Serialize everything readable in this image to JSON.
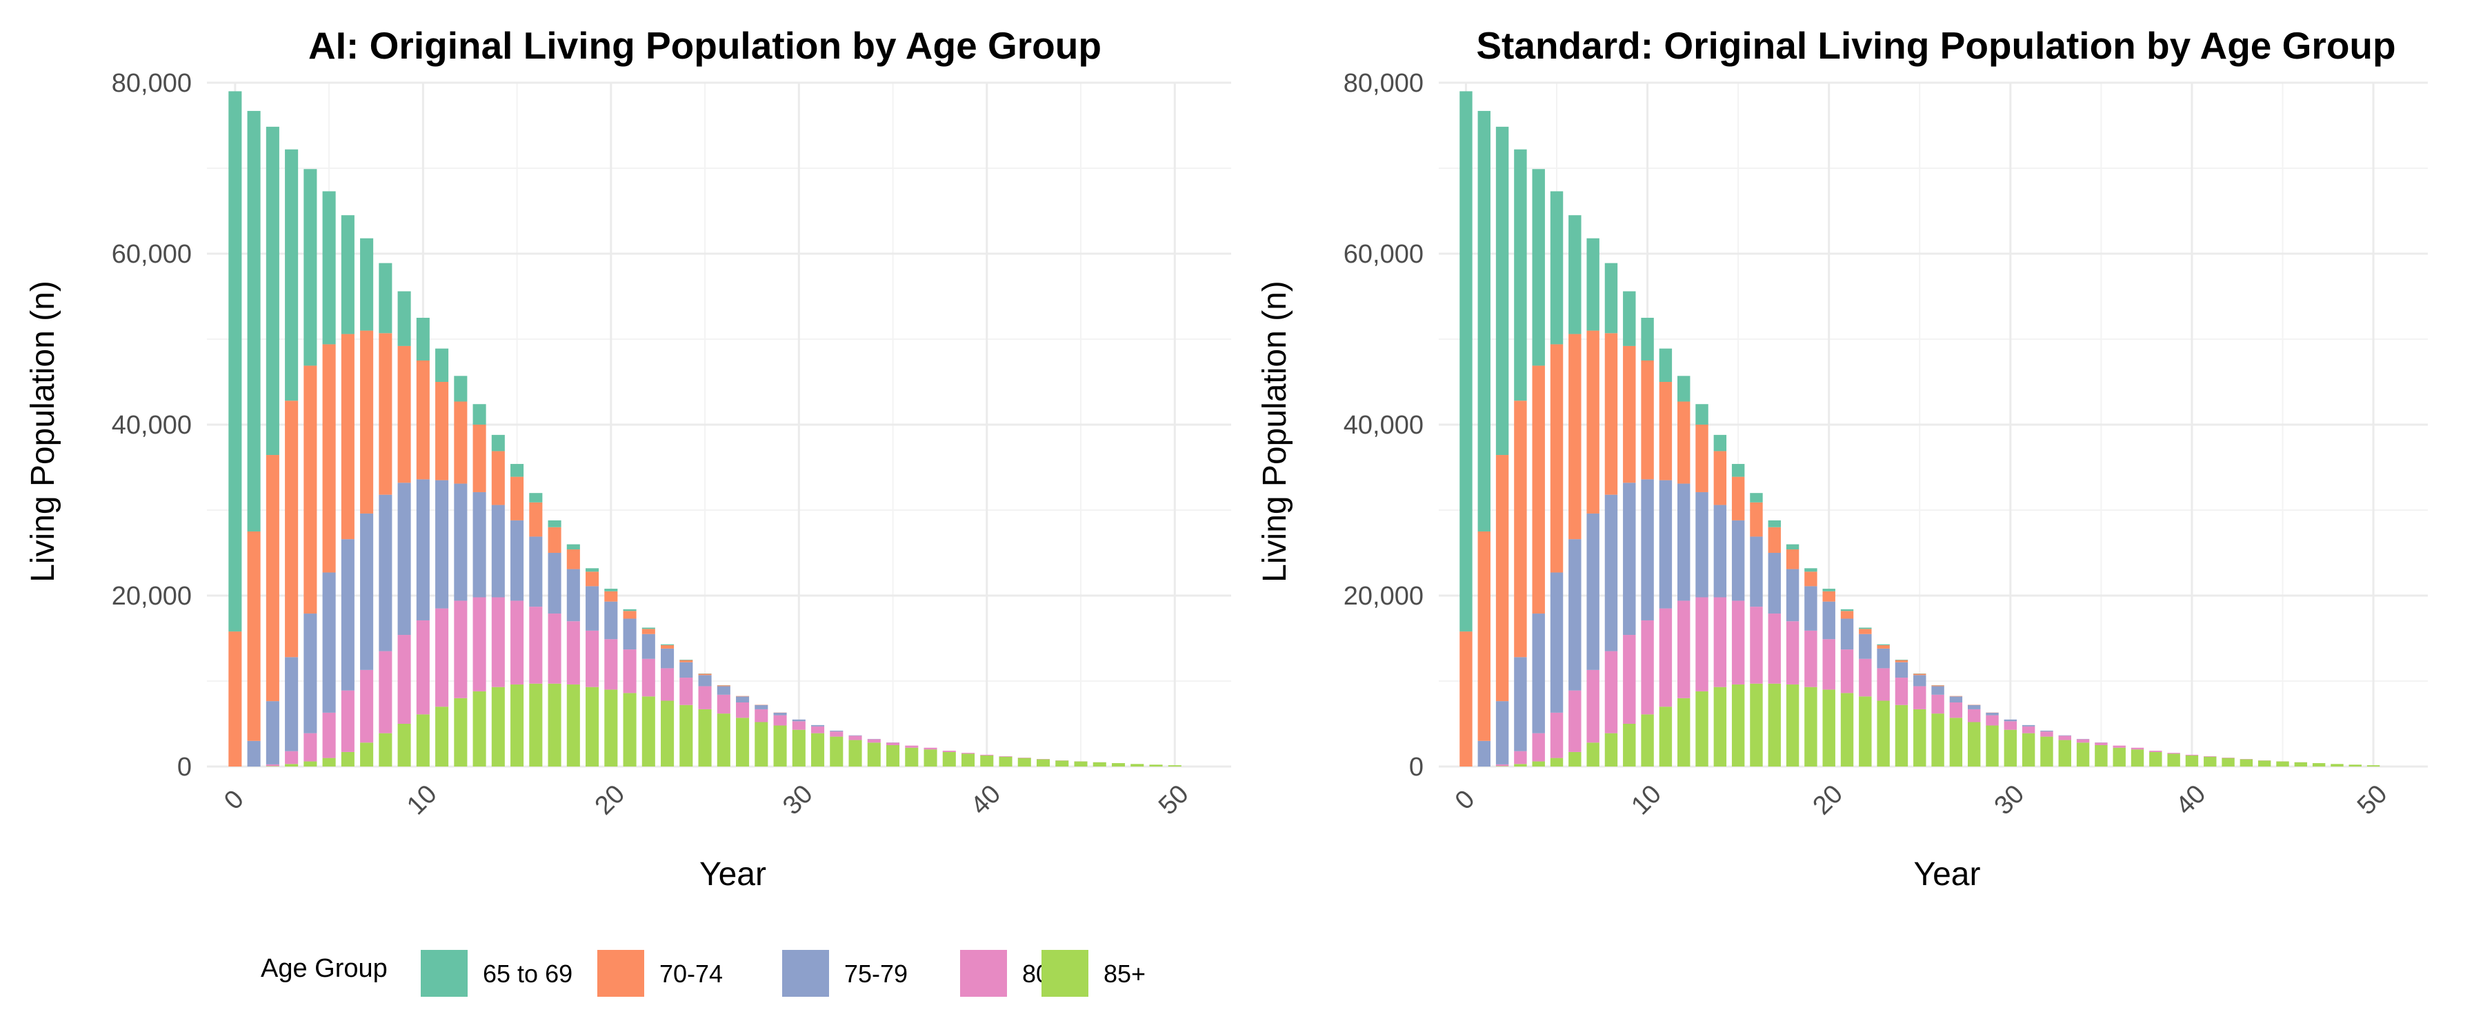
{
  "chart_data": [
    {
      "type": "bar",
      "stacked": true,
      "title": "AI: Original Living Population by Age Group",
      "xlabel": "Year",
      "ylabel": "Living Population (n)",
      "xlim": [
        -1.5,
        53
      ],
      "ylim": [
        0,
        80000
      ],
      "x_ticks": [
        0,
        10,
        20,
        30,
        40,
        50
      ],
      "y_ticks": [
        0,
        20000,
        40000,
        60000,
        80000
      ],
      "y_tick_labels": [
        "0",
        "20,000",
        "40,000",
        "60,000",
        "80,000"
      ],
      "x": [
        0,
        1,
        2,
        3,
        4,
        5,
        6,
        7,
        8,
        9,
        10,
        11,
        12,
        13,
        14,
        15,
        16,
        17,
        18,
        19,
        20,
        21,
        22,
        23,
        24,
        25,
        26,
        27,
        28,
        29,
        30,
        31,
        32,
        33,
        34,
        35,
        36,
        37,
        38,
        39,
        40,
        41,
        42,
        43,
        44,
        45,
        46,
        47,
        48,
        49,
        50
      ],
      "series": [
        {
          "name": "85+",
          "values": [
            0,
            0,
            50,
            300,
            600,
            1000,
            1700,
            2800,
            3900,
            5000,
            6100,
            7000,
            8000,
            8800,
            9300,
            9600,
            9700,
            9700,
            9600,
            9300,
            9000,
            8600,
            8200,
            7700,
            7200,
            6700,
            6200,
            5700,
            5200,
            4800,
            4300,
            3900,
            3500,
            3100,
            2800,
            2500,
            2200,
            2000,
            1700,
            1500,
            1300,
            1150,
            1000,
            850,
            700,
            600,
            500,
            400,
            300,
            220,
            150
          ]
        },
        {
          "name": "80-84",
          "values": [
            0,
            0,
            200,
            1500,
            3300,
            5300,
            7200,
            8500,
            9600,
            10400,
            11000,
            11500,
            11400,
            11000,
            10500,
            9800,
            9000,
            8200,
            7400,
            6600,
            5900,
            5100,
            4400,
            3800,
            3200,
            2700,
            2200,
            1800,
            1500,
            1200,
            1000,
            800,
            600,
            500,
            400,
            300,
            250,
            200,
            150,
            100,
            80,
            60,
            40,
            30,
            20,
            10,
            5,
            0,
            0,
            0,
            0
          ]
        },
        {
          "name": "75-79",
          "values": [
            0,
            3000,
            7400,
            11000,
            14000,
            16400,
            17700,
            18300,
            18300,
            17800,
            16500,
            15000,
            13700,
            12300,
            10800,
            9400,
            8200,
            7100,
            6100,
            5200,
            4400,
            3600,
            2900,
            2300,
            1800,
            1300,
            1000,
            700,
            500,
            300,
            200,
            150,
            100,
            50,
            30,
            20,
            0,
            0,
            0,
            0,
            0,
            0,
            0,
            0,
            0,
            0,
            0,
            0,
            0,
            0,
            0
          ]
        },
        {
          "name": "70-74",
          "values": [
            15800,
            24500,
            28800,
            30000,
            29000,
            26700,
            24000,
            21400,
            18900,
            16000,
            13900,
            11500,
            9600,
            7900,
            6300,
            5100,
            4000,
            3000,
            2300,
            1700,
            1200,
            900,
            600,
            400,
            250,
            150,
            100,
            50,
            30,
            20,
            0,
            0,
            0,
            0,
            0,
            0,
            0,
            0,
            0,
            0,
            0,
            0,
            0,
            0,
            0,
            0,
            0,
            0,
            0,
            0,
            0
          ]
        },
        {
          "name": "65 to 69",
          "values": [
            63200,
            49200,
            38400,
            29400,
            23000,
            17900,
            13900,
            10800,
            8200,
            6400,
            5000,
            3900,
            3000,
            2400,
            1900,
            1500,
            1100,
            800,
            600,
            400,
            300,
            200,
            150,
            100,
            50,
            30,
            20,
            0,
            0,
            0,
            0,
            0,
            0,
            0,
            0,
            0,
            0,
            0,
            0,
            0,
            0,
            0,
            0,
            0,
            0,
            0,
            0,
            0,
            0,
            0,
            0
          ]
        }
      ]
    },
    {
      "type": "bar",
      "stacked": true,
      "title": "Standard: Original Living Population by Age Group",
      "xlabel": "Year",
      "ylabel": "Living Population (n)",
      "xlim": [
        -1.5,
        53
      ],
      "ylim": [
        0,
        80000
      ],
      "x_ticks": [
        0,
        10,
        20,
        30,
        40,
        50
      ],
      "y_ticks": [
        0,
        20000,
        40000,
        60000,
        80000
      ],
      "y_tick_labels": [
        "0",
        "20,000",
        "40,000",
        "60,000",
        "80,000"
      ],
      "x": [
        0,
        1,
        2,
        3,
        4,
        5,
        6,
        7,
        8,
        9,
        10,
        11,
        12,
        13,
        14,
        15,
        16,
        17,
        18,
        19,
        20,
        21,
        22,
        23,
        24,
        25,
        26,
        27,
        28,
        29,
        30,
        31,
        32,
        33,
        34,
        35,
        36,
        37,
        38,
        39,
        40,
        41,
        42,
        43,
        44,
        45,
        46,
        47,
        48,
        49,
        50
      ],
      "series": [
        {
          "name": "85+",
          "values": [
            0,
            0,
            50,
            300,
            600,
            1000,
            1700,
            2800,
            3900,
            5000,
            6100,
            7000,
            8000,
            8800,
            9300,
            9600,
            9700,
            9700,
            9600,
            9300,
            9000,
            8600,
            8200,
            7700,
            7200,
            6700,
            6200,
            5700,
            5200,
            4800,
            4300,
            3900,
            3500,
            3100,
            2800,
            2500,
            2200,
            2000,
            1700,
            1500,
            1300,
            1150,
            1000,
            850,
            700,
            600,
            500,
            400,
            300,
            220,
            150
          ]
        },
        {
          "name": "80-84",
          "values": [
            0,
            0,
            200,
            1500,
            3300,
            5300,
            7200,
            8500,
            9600,
            10400,
            11000,
            11500,
            11400,
            11000,
            10500,
            9800,
            9000,
            8200,
            7400,
            6600,
            5900,
            5100,
            4400,
            3800,
            3200,
            2700,
            2200,
            1800,
            1500,
            1200,
            1000,
            800,
            600,
            500,
            400,
            300,
            250,
            200,
            150,
            100,
            80,
            60,
            40,
            30,
            20,
            10,
            5,
            0,
            0,
            0,
            0
          ]
        },
        {
          "name": "75-79",
          "values": [
            0,
            3000,
            7400,
            11000,
            14000,
            16400,
            17700,
            18300,
            18300,
            17800,
            16500,
            15000,
            13700,
            12300,
            10800,
            9400,
            8200,
            7100,
            6100,
            5200,
            4400,
            3600,
            2900,
            2300,
            1800,
            1300,
            1000,
            700,
            500,
            300,
            200,
            150,
            100,
            50,
            30,
            20,
            0,
            0,
            0,
            0,
            0,
            0,
            0,
            0,
            0,
            0,
            0,
            0,
            0,
            0,
            0
          ]
        },
        {
          "name": "70-74",
          "values": [
            15800,
            24500,
            28800,
            30000,
            29000,
            26700,
            24000,
            21400,
            18900,
            16000,
            13900,
            11500,
            9600,
            7900,
            6300,
            5100,
            4000,
            3000,
            2300,
            1700,
            1200,
            900,
            600,
            400,
            250,
            150,
            100,
            50,
            30,
            20,
            0,
            0,
            0,
            0,
            0,
            0,
            0,
            0,
            0,
            0,
            0,
            0,
            0,
            0,
            0,
            0,
            0,
            0,
            0,
            0,
            0
          ]
        },
        {
          "name": "65 to 69",
          "values": [
            63200,
            49200,
            38400,
            29400,
            23000,
            17900,
            13900,
            10800,
            8200,
            6400,
            5000,
            3900,
            3000,
            2400,
            1900,
            1500,
            1100,
            800,
            600,
            400,
            300,
            200,
            150,
            100,
            50,
            30,
            20,
            0,
            0,
            0,
            0,
            0,
            0,
            0,
            0,
            0,
            0,
            0,
            0,
            0,
            0,
            0,
            0,
            0,
            0,
            0,
            0,
            0,
            0,
            0,
            0
          ]
        }
      ]
    }
  ],
  "legend": {
    "title": "Age Group",
    "placement": "bottom-left",
    "items": [
      {
        "label": "65 to 69",
        "color": "#66c2a5"
      },
      {
        "label": "70-74",
        "color": "#fc8d62"
      },
      {
        "label": "75-79",
        "color": "#8da0cb"
      },
      {
        "label": "80-84",
        "color": "#e78ac3"
      },
      {
        "label": "85+",
        "color": "#a6d854"
      }
    ]
  }
}
